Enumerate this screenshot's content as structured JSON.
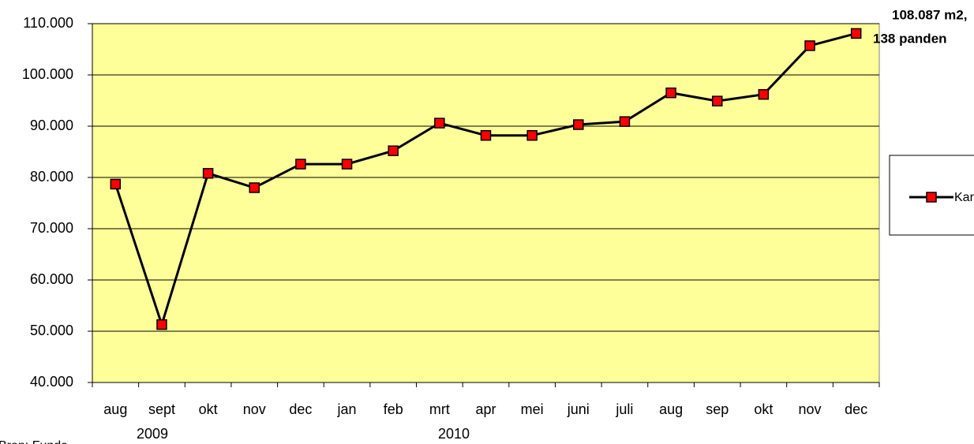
{
  "chart_data": {
    "type": "line",
    "categories": [
      "aug",
      "sept",
      "okt",
      "nov",
      "dec",
      "jan",
      "feb",
      "mrt",
      "apr",
      "mei",
      "juni",
      "juli",
      "aug",
      "sep",
      "okt",
      "nov",
      "dec"
    ],
    "groups": [
      "2009",
      "2010"
    ],
    "series": [
      {
        "name": "Kar",
        "color": "#000000",
        "marker_color": "#ff0000",
        "values": [
          78700,
          51300,
          80800,
          78000,
          82600,
          82600,
          85200,
          90600,
          88200,
          88200,
          90300,
          90900,
          96500,
          94900,
          96200,
          105700,
          108087
        ]
      }
    ],
    "ylim": [
      40000,
      110000
    ],
    "yticks": [
      {
        "value": 40000,
        "label": "40.000"
      },
      {
        "value": 50000,
        "label": "50.000"
      },
      {
        "value": 60000,
        "label": "60.000"
      },
      {
        "value": 70000,
        "label": "70.000"
      },
      {
        "value": 80000,
        "label": "80.000"
      },
      {
        "value": 90000,
        "label": "90.000"
      },
      {
        "value": 100000,
        "label": "100.000"
      },
      {
        "value": 110000,
        "label": "110.000"
      }
    ],
    "grid": true,
    "plot_background": "#ffff99",
    "annotation": [
      "108.087 m2,",
      "138 panden"
    ],
    "source": "Bron: Funda"
  }
}
